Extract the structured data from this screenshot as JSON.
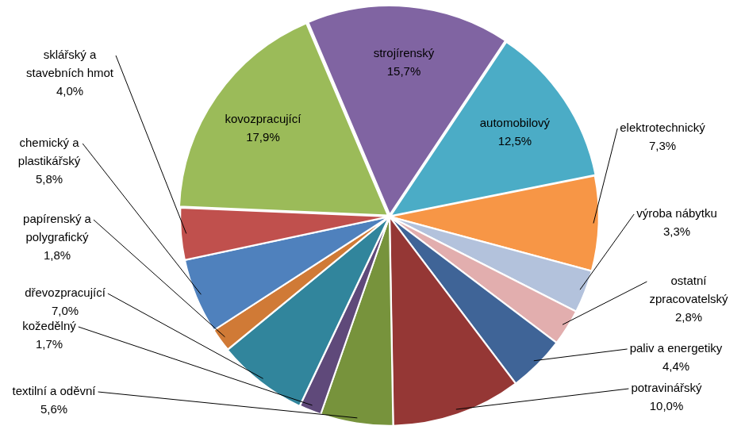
{
  "chart_data": {
    "type": "pie",
    "categories": [
      "strojírenský",
      "automobilový",
      "elektrotechnický",
      "výroba nábytku",
      "ostatní zpracovatelský",
      "paliv a energetiky",
      "potravinářský",
      "textilní a oděvní",
      "kožedělný",
      "dřevozpracující",
      "papírenský a polygrafický",
      "chemický a plastikářský",
      "sklářský a stavebních hmot",
      "kovozpracující"
    ],
    "values": [
      15.7,
      12.5,
      7.3,
      3.3,
      2.8,
      4.4,
      10.0,
      5.6,
      1.7,
      7.0,
      1.8,
      5.8,
      4.0,
      17.9
    ],
    "value_labels": [
      "15,7%",
      "12,5%",
      "7,3%",
      "3,3%",
      "2,8%",
      "4,4%",
      "10,0%",
      "5,6%",
      "1,7%",
      "7,0%",
      "1,8%",
      "5,8%",
      "4,0%",
      "17,9%"
    ],
    "colors": [
      "#8064a2",
      "#4bacc6",
      "#f79646",
      "#b3c2dc",
      "#e2aeae",
      "#3f6497",
      "#953735",
      "#77933c",
      "#5f497a",
      "#31859c",
      "#d07a36",
      "#4f81bd",
      "#c0504d",
      "#9bbb59"
    ],
    "data_labels": true
  }
}
